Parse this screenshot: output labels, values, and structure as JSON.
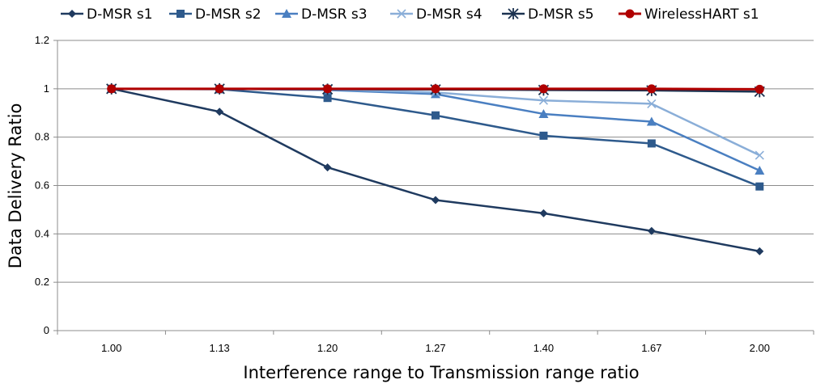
{
  "chart_data": {
    "type": "line",
    "title": "",
    "xlabel": "Interference range to Transmission range ratio",
    "ylabel": "Data Delivery Ratio",
    "categories": [
      "1.00",
      "1.13",
      "1.20",
      "1.27",
      "1.40",
      "1.67",
      "2.00"
    ],
    "ylim": [
      0,
      1.2
    ],
    "yticks": [
      "0",
      "0.2",
      "0.4",
      "0.6",
      "0.8",
      "1",
      "1.2"
    ],
    "grid": "horizontal",
    "legend": "top",
    "series": [
      {
        "name": "D-MSR s1",
        "color": "#1f3a5f",
        "marker": "diamond",
        "values": [
          1.0,
          0.905,
          0.675,
          0.54,
          0.485,
          0.412,
          0.328
        ]
      },
      {
        "name": "D-MSR s2",
        "color": "#2e5a8c",
        "marker": "square",
        "values": [
          1.0,
          0.998,
          0.962,
          0.89,
          0.806,
          0.774,
          0.596
        ]
      },
      {
        "name": "D-MSR s3",
        "color": "#4a7fc1",
        "marker": "triangle",
        "values": [
          1.0,
          1.0,
          0.995,
          0.978,
          0.896,
          0.864,
          0.662
        ]
      },
      {
        "name": "D-MSR s4",
        "color": "#8aaed8",
        "marker": "x",
        "values": [
          1.0,
          1.0,
          0.998,
          0.985,
          0.952,
          0.938,
          0.725
        ]
      },
      {
        "name": "D-MSR s5",
        "color": "#1b3250",
        "marker": "asterisk",
        "values": [
          1.0,
          1.0,
          0.998,
          0.997,
          0.995,
          0.993,
          0.988
        ]
      },
      {
        "name": "WirelessHART s1",
        "color": "#b00000",
        "marker": "circle",
        "values": [
          1.0,
          1.0,
          1.0,
          1.0,
          1.0,
          1.0,
          0.998
        ]
      }
    ]
  }
}
